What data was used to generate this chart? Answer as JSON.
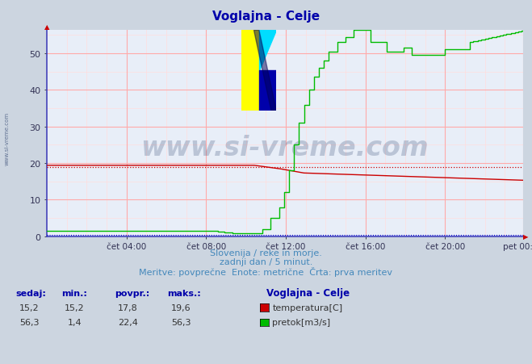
{
  "title": "Voglajna - Celje",
  "bg_color": "#ccd5e0",
  "plot_bg_color": "#e8eef8",
  "grid_major_color": "#ffaaaa",
  "grid_minor_color": "#ffdddd",
  "axis_color": "#4444bb",
  "xlabel_ticks": [
    "čet 04:00",
    "čet 08:00",
    "čet 12:00",
    "čet 16:00",
    "čet 20:00",
    "pet 00:00"
  ],
  "yticks": [
    0,
    10,
    20,
    30,
    40,
    50
  ],
  "ylim": [
    0,
    56.3
  ],
  "temp_color": "#cc0000",
  "flow_color": "#00bb00",
  "height_color": "#0000cc",
  "avg_color": "#cc0000",
  "temp_avg": 19.0,
  "watermark_text": "www.si-vreme.com",
  "watermark_color": "#1a3060",
  "watermark_alpha": 0.22,
  "side_text": "www.si-vreme.com",
  "footer_line1": "Slovenija / reke in morje.",
  "footer_line2": "zadnji dan / 5 minut.",
  "footer_line3": "Meritve: povprečne  Enote: metrične  Črta: prva meritev",
  "footer_color": "#4488bb",
  "legend_title": "Voglajna - Celje",
  "legend_colors": [
    "#cc0000",
    "#00bb00"
  ],
  "legend_items": [
    "temperatura[C]",
    "pretok[m3/s]"
  ],
  "table_headers": [
    "sedaj:",
    "min.:",
    "povpr.:",
    "maks.:"
  ],
  "table_temp": [
    "15,2",
    "15,2",
    "17,8",
    "19,6"
  ],
  "table_flow": [
    "56,3",
    "1,4",
    "22,4",
    "56,3"
  ],
  "n_points": 288
}
